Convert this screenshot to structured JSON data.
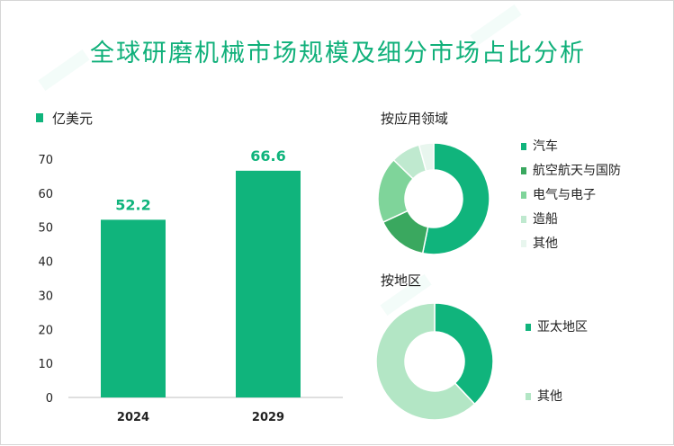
{
  "title": "全球研磨机械市场规模及细分市场占比分析",
  "chart_data": [
    {
      "type": "bar",
      "legend": "亿美元",
      "categories": [
        "2024",
        "2029"
      ],
      "values": [
        52.2,
        66.6
      ],
      "data_labels": [
        "52.2",
        "66.6"
      ],
      "yticks": [
        "0",
        "10",
        "20",
        "30",
        "40",
        "50",
        "60",
        "70"
      ],
      "ylim": [
        0,
        70
      ],
      "color": "#10b47c"
    },
    {
      "type": "pie",
      "title": "按应用领域",
      "labels": [
        "汽车",
        "航空航天与国防",
        "电气与电子",
        "造船",
        "其他"
      ],
      "values": [
        50,
        14,
        18,
        8,
        4
      ],
      "colors": [
        "#10b47c",
        "#3aa85f",
        "#7fd49a",
        "#bfe9cf",
        "#e8f6ee"
      ]
    },
    {
      "type": "pie",
      "title": "按地区",
      "labels": [
        "亚太地区",
        "其他"
      ],
      "values": [
        38,
        62
      ],
      "colors": [
        "#10b47c",
        "#b3e6c5"
      ]
    }
  ]
}
